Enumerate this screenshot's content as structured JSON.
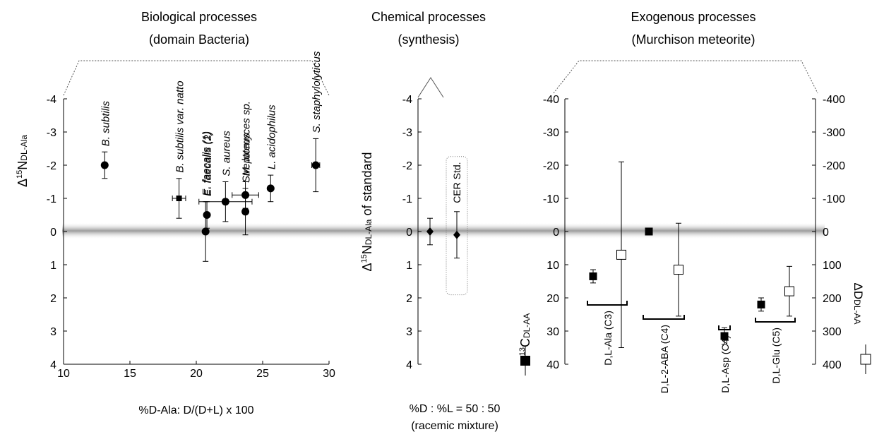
{
  "headers": {
    "bio": {
      "line1": "Biological processes",
      "line2": "(domain Bacteria)"
    },
    "chem": {
      "line1": "Chemical processes",
      "line2": "(synthesis)"
    },
    "exo": {
      "line1": "Exogenous processes",
      "line2": "(Murchison meteorite)"
    }
  },
  "chart_data": [
    {
      "type": "scatter",
      "panel": "biological",
      "ylabel": {
        "prefix": "Δ",
        "sup": "15",
        "main": "N",
        "sub": "DL-Ala"
      },
      "xlabel": "%D-Ala: D/(D+L) x 100",
      "xlim": [
        10,
        30
      ],
      "xticks": [
        10,
        15,
        20,
        25,
        30
      ],
      "ylim": [
        4,
        -4
      ],
      "yticks": [
        {
          "v": -4,
          "label": "-4"
        },
        {
          "v": -3,
          "label": "-3"
        },
        {
          "v": -2,
          "label": "-2"
        },
        {
          "v": -1,
          "label": "-1"
        },
        {
          "v": 0,
          "label": "0"
        },
        {
          "v": 1,
          "label": "1"
        },
        {
          "v": 2,
          "label": "2"
        },
        {
          "v": 3,
          "label": "3"
        },
        {
          "v": 4,
          "label": "4"
        }
      ],
      "points": [
        {
          "name": "B. subtilis",
          "x": 13.1,
          "y": -2.0,
          "yerr": 0.4,
          "xerr": 0,
          "marker": "circle"
        },
        {
          "name": "B. subtilis var. natto",
          "x": 18.7,
          "y": -1.0,
          "yerr": 0.6,
          "xerr": 0.5,
          "marker": "square"
        },
        {
          "name": "E. faecalis (1)",
          "x": 20.7,
          "y": 0.0,
          "yerr": 0.9,
          "xerr": 0,
          "marker": "circle"
        },
        {
          "name": "E. faecalis (2)",
          "x": 20.8,
          "y": -0.5,
          "yerr": 0.4,
          "xerr": 0,
          "marker": "circle"
        },
        {
          "name": "S. aureus",
          "x": 22.2,
          "y": -0.9,
          "yerr": 0.6,
          "xerr": 2.0,
          "marker": "circle"
        },
        {
          "name": "Streptomyces sp.",
          "x": 23.7,
          "y": -0.6,
          "yerr": 0.7,
          "xerr": 0,
          "marker": "circle"
        },
        {
          "name": "M. luteus",
          "x": 23.7,
          "y": -1.1,
          "yerr": 0.4,
          "xerr": 1.0,
          "marker": "circle"
        },
        {
          "name": "L. acidophilus",
          "x": 25.6,
          "y": -1.3,
          "yerr": 0.4,
          "xerr": 0,
          "marker": "circle"
        },
        {
          "name": "S. staphylolyticus",
          "x": 29.0,
          "y": -2.0,
          "yerr": 0.8,
          "xerr": 0.3,
          "marker": "circle"
        }
      ]
    },
    {
      "type": "scatter",
      "panel": "chemical",
      "ylabel": {
        "prefix": "Δ",
        "sup": "15",
        "main": "N",
        "sub": "DL-Ala",
        "suffix": " of standard"
      },
      "xlabel": [
        "%D : %L = 50 : 50",
        "(racemic mixture)"
      ],
      "ylim": [
        4,
        -4
      ],
      "yticks": [
        {
          "v": -4,
          "label": "-4"
        },
        {
          "v": -3,
          "label": "-3"
        },
        {
          "v": -2,
          "label": "-2"
        },
        {
          "v": -1,
          "label": "-1"
        },
        {
          "v": 0,
          "label": "0"
        },
        {
          "v": 1,
          "label": "1"
        },
        {
          "v": 2,
          "label": "2"
        },
        {
          "v": 3,
          "label": "3"
        },
        {
          "v": 4,
          "label": "4"
        }
      ],
      "points": [
        {
          "name": "",
          "y": 0.0,
          "yerr": 0.4,
          "marker": "diamond"
        },
        {
          "name": "CER Std.",
          "y": 0.1,
          "yerr": 0.7,
          "marker": "diamond"
        }
      ]
    },
    {
      "type": "scatter",
      "panel": "exogenous",
      "ylabel_left": {
        "prefix": "Δ",
        "sup": "13",
        "main": "C",
        "sub": "DL-AA"
      },
      "ylabel_right": {
        "prefix": "Δ",
        "main": "D",
        "sub": "DL-AA"
      },
      "ylim_left": [
        40,
        -40
      ],
      "ylim_right": [
        400,
        -400
      ],
      "yticks_left": [
        {
          "v": -40,
          "label": "-40"
        },
        {
          "v": -30,
          "label": "-30"
        },
        {
          "v": -20,
          "label": "-20"
        },
        {
          "v": -10,
          "label": "-10"
        },
        {
          "v": 0,
          "label": "0"
        },
        {
          "v": 10,
          "label": "10"
        },
        {
          "v": 20,
          "label": "20"
        },
        {
          "v": 30,
          "label": "30"
        },
        {
          "v": 40,
          "label": "40"
        }
      ],
      "yticks_right": [
        {
          "v": -400,
          "label": "-400"
        },
        {
          "v": -300,
          "label": "-300"
        },
        {
          "v": -200,
          "label": "-200"
        },
        {
          "v": -100,
          "label": "-100"
        },
        {
          "v": 0,
          "label": "0"
        },
        {
          "v": 100,
          "label": "100"
        },
        {
          "v": 200,
          "label": "200"
        },
        {
          "v": 300,
          "label": "300"
        },
        {
          "v": 400,
          "label": "400"
        }
      ],
      "groups": [
        {
          "label": "D,L-Ala (C3)",
          "carbon13": 13.5,
          "carbon13_err": 2,
          "deuterium": 70,
          "deuterium_err": 280
        },
        {
          "label": "D,L-2-ABA (C4)",
          "carbon13": 0.0,
          "carbon13_err": 0,
          "deuterium": 115,
          "deuterium_err": 140
        },
        {
          "label": "D,L-Asp (C4)",
          "carbon13": 31.5,
          "carbon13_err": 2.5,
          "deuterium": null,
          "deuterium_err": null
        },
        {
          "label": "D,L-Glu (C5)",
          "carbon13": 22.0,
          "carbon13_err": 2,
          "deuterium": 180,
          "deuterium_err": 75
        }
      ]
    }
  ]
}
